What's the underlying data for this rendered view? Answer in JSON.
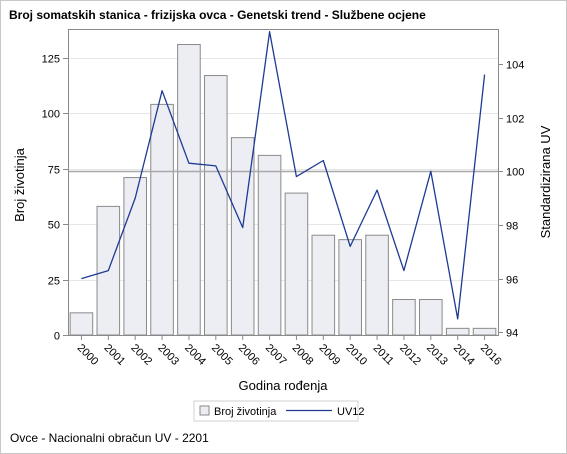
{
  "title": "Broj somatskih stanica - frizijska ovca - Genetski trend - Službene ocjene",
  "footnote": "Ovce - Nacionalni obračun UV - 2201",
  "colors": {
    "bar_fill": "#eceef4",
    "bar_stroke": "#8a8a8a",
    "line": "#1f3a93",
    "reference": "#a8a8a8",
    "grid": "#e6e6e6",
    "axis": "#8a8a8a"
  },
  "chart_data": {
    "type": "bar",
    "categories": [
      "2000",
      "2001",
      "2002",
      "2003",
      "2004",
      "2005",
      "2006",
      "2007",
      "2008",
      "2009",
      "2010",
      "2011",
      "2012",
      "2013",
      "2014",
      "2016"
    ],
    "series": [
      {
        "name": "Broj životinja",
        "type": "bar",
        "axis": "left",
        "values": [
          10,
          58,
          71,
          104,
          131,
          117,
          89,
          81,
          64,
          45,
          43,
          45,
          16,
          16,
          3,
          3
        ]
      },
      {
        "name": "UV12",
        "type": "line",
        "axis": "right",
        "values": [
          96.0,
          96.3,
          99.0,
          103.0,
          100.3,
          100.2,
          97.9,
          105.2,
          99.8,
          100.4,
          97.2,
          99.3,
          96.3,
          100.0,
          94.5,
          103.6
        ]
      }
    ],
    "xlabel": "Godina rođenja",
    "ylabel": "Broj životinja",
    "y2label": "Standardizirana UV",
    "ylim": [
      0,
      138
    ],
    "y2lim": [
      93.9,
      105.3
    ],
    "yticks": [
      0,
      25,
      50,
      75,
      100,
      125
    ],
    "y2ticks": [
      94,
      96,
      98,
      100,
      102,
      104
    ],
    "reference_line_y2": 100,
    "grid": true,
    "legend_position": "bottom"
  }
}
